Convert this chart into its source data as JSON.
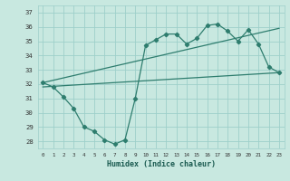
{
  "xlabel": "Humidex (Indice chaleur)",
  "ylabel": "",
  "bg_color": "#c8e8e0",
  "grid_color": "#9ecfca",
  "line_color": "#2e7d6e",
  "x_ticks": [
    0,
    1,
    2,
    3,
    4,
    5,
    6,
    7,
    8,
    9,
    10,
    11,
    12,
    13,
    14,
    15,
    16,
    17,
    18,
    19,
    20,
    21,
    22,
    23
  ],
  "y_ticks": [
    28,
    29,
    30,
    31,
    32,
    33,
    34,
    35,
    36,
    37
  ],
  "ylim": [
    27.5,
    37.5
  ],
  "xlim": [
    -0.5,
    23.5
  ],
  "curve1_x": [
    0,
    1,
    2,
    3,
    4,
    5,
    6,
    7,
    8,
    9,
    10,
    11,
    12,
    13,
    14,
    15,
    16,
    17,
    18,
    19,
    20,
    21,
    22,
    23
  ],
  "curve1_y": [
    32.1,
    31.8,
    31.1,
    30.3,
    29.0,
    28.7,
    28.1,
    27.8,
    28.1,
    31.0,
    34.7,
    35.1,
    35.5,
    35.5,
    34.8,
    35.2,
    36.1,
    36.2,
    35.7,
    35.0,
    35.8,
    34.8,
    33.2,
    32.8
  ],
  "curve2_x": [
    0,
    23
  ],
  "curve2_y": [
    32.1,
    35.9
  ],
  "curve3_x": [
    0,
    23
  ],
  "curve3_y": [
    31.8,
    32.8
  ]
}
